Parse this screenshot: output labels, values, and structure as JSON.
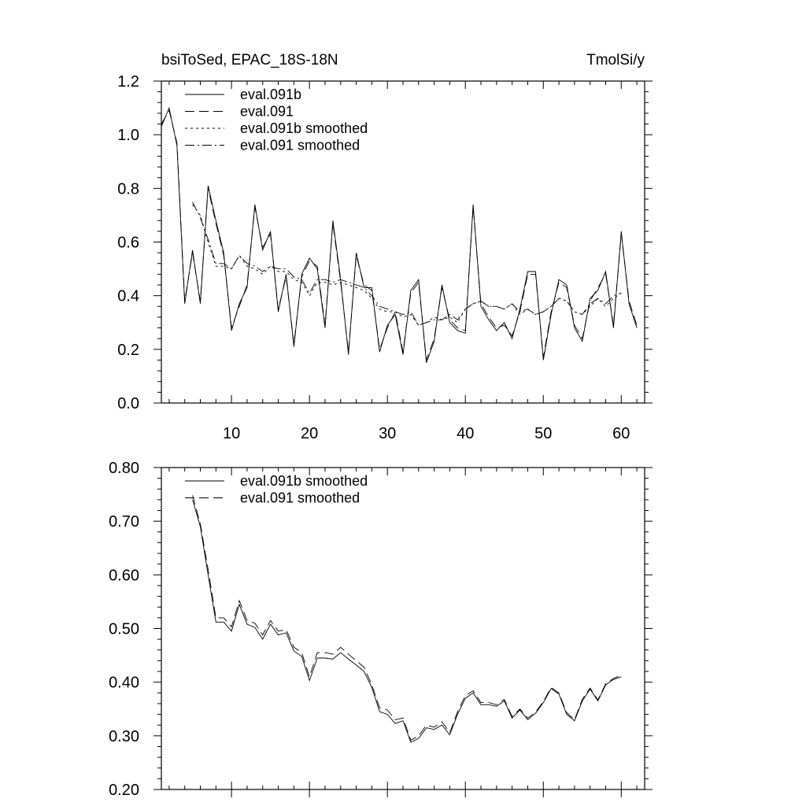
{
  "chart_data": [
    {
      "type": "line",
      "title_left": "bsiToSed, EPAC_18S-18N",
      "title_right": "TmolSi/y",
      "xlabel": "",
      "ylabel": "",
      "xlim": [
        1,
        63
      ],
      "ylim": [
        0.0,
        1.2
      ],
      "xticks": [
        10,
        20,
        30,
        40,
        50,
        60
      ],
      "yticks": [
        0.0,
        0.2,
        0.4,
        0.6,
        0.8,
        1.0,
        1.2
      ],
      "ytick_labels": [
        "0.0",
        "0.2",
        "0.4",
        "0.6",
        "0.8",
        "1.0",
        "1.2"
      ],
      "grid": false,
      "legend_position": "top-left",
      "series": [
        {
          "name": "eval.091b",
          "dash": "solid",
          "x": [
            1,
            2,
            3,
            4,
            5,
            6,
            7,
            8,
            9,
            10,
            11,
            12,
            13,
            14,
            15,
            16,
            17,
            18,
            19,
            20,
            21,
            22,
            23,
            24,
            25,
            26,
            27,
            28,
            29,
            30,
            31,
            32,
            33,
            34,
            35,
            36,
            37,
            38,
            39,
            40,
            41,
            42,
            43,
            44,
            45,
            46,
            47,
            48,
            49,
            50,
            51,
            52,
            53,
            54,
            55,
            56,
            57,
            58,
            59,
            60,
            61,
            62
          ],
          "values": [
            1.03,
            1.1,
            0.96,
            0.37,
            0.57,
            0.37,
            0.81,
            0.68,
            0.56,
            0.27,
            0.37,
            0.43,
            0.74,
            0.57,
            0.64,
            0.34,
            0.48,
            0.21,
            0.48,
            0.54,
            0.5,
            0.28,
            0.68,
            0.46,
            0.18,
            0.56,
            0.43,
            0.43,
            0.19,
            0.29,
            0.33,
            0.18,
            0.42,
            0.46,
            0.15,
            0.23,
            0.44,
            0.3,
            0.27,
            0.26,
            0.74,
            0.36,
            0.31,
            0.27,
            0.3,
            0.24,
            0.35,
            0.49,
            0.49,
            0.16,
            0.33,
            0.46,
            0.44,
            0.28,
            0.23,
            0.39,
            0.42,
            0.49,
            0.28,
            0.64,
            0.37,
            0.28
          ]
        },
        {
          "name": "eval.091",
          "dash": "long-dash",
          "x": [
            1,
            2,
            3,
            4,
            5,
            6,
            7,
            8,
            9,
            10,
            11,
            12,
            13,
            14,
            15,
            16,
            17,
            18,
            19,
            20,
            21,
            22,
            23,
            24,
            25,
            26,
            27,
            28,
            29,
            30,
            31,
            32,
            33,
            34,
            35,
            36,
            37,
            38,
            39,
            40,
            41,
            42,
            43,
            44,
            45,
            46,
            47,
            48,
            49,
            50,
            51,
            52,
            53,
            54,
            55,
            56,
            57,
            58,
            59,
            60,
            61,
            62
          ],
          "values": [
            1.04,
            1.09,
            0.97,
            0.38,
            0.56,
            0.38,
            0.8,
            0.67,
            0.55,
            0.28,
            0.36,
            0.44,
            0.73,
            0.58,
            0.63,
            0.35,
            0.47,
            0.22,
            0.47,
            0.53,
            0.51,
            0.29,
            0.67,
            0.45,
            0.19,
            0.55,
            0.44,
            0.42,
            0.2,
            0.28,
            0.34,
            0.19,
            0.41,
            0.45,
            0.16,
            0.24,
            0.43,
            0.31,
            0.28,
            0.27,
            0.73,
            0.37,
            0.32,
            0.28,
            0.29,
            0.25,
            0.34,
            0.48,
            0.48,
            0.17,
            0.34,
            0.45,
            0.43,
            0.29,
            0.24,
            0.38,
            0.43,
            0.48,
            0.29,
            0.63,
            0.38,
            0.29
          ]
        },
        {
          "name": "eval.091b smoothed",
          "dash": "short-dash",
          "x": [
            5,
            6,
            7,
            8,
            9,
            10,
            11,
            12,
            13,
            14,
            15,
            16,
            17,
            18,
            19,
            20,
            21,
            22,
            23,
            24,
            25,
            26,
            27,
            28,
            29,
            30,
            31,
            32,
            33,
            34,
            35,
            36,
            37,
            38,
            39,
            40,
            41,
            42,
            43,
            44,
            45,
            46,
            47,
            48,
            49,
            50,
            51,
            52,
            53,
            54,
            55,
            56,
            57,
            58,
            59,
            60
          ],
          "values": [
            0.74,
            0.7,
            0.6,
            0.51,
            0.51,
            0.5,
            0.55,
            0.51,
            0.5,
            0.48,
            0.51,
            0.49,
            0.49,
            0.46,
            0.45,
            0.4,
            0.45,
            0.45,
            0.44,
            0.45,
            0.44,
            0.43,
            0.42,
            0.39,
            0.35,
            0.34,
            0.34,
            0.32,
            0.33,
            0.29,
            0.3,
            0.32,
            0.31,
            0.32,
            0.3,
            0.35,
            0.37,
            0.38,
            0.36,
            0.36,
            0.35,
            0.37,
            0.33,
            0.35,
            0.33,
            0.34,
            0.36,
            0.39,
            0.38,
            0.34,
            0.33,
            0.36,
            0.39,
            0.36,
            0.39,
            0.41
          ]
        },
        {
          "name": "eval.091 smoothed",
          "dash": "dash-dot",
          "x": [
            5,
            6,
            7,
            8,
            9,
            10,
            11,
            12,
            13,
            14,
            15,
            16,
            17,
            18,
            19,
            20,
            21,
            22,
            23,
            24,
            25,
            26,
            27,
            28,
            29,
            30,
            31,
            32,
            33,
            34,
            35,
            36,
            37,
            38,
            39,
            40,
            41,
            42,
            43,
            44,
            45,
            46,
            47,
            48,
            49,
            50,
            51,
            52,
            53,
            54,
            55,
            56,
            57,
            58,
            59,
            60
          ],
          "values": [
            0.75,
            0.69,
            0.61,
            0.52,
            0.52,
            0.5,
            0.55,
            0.52,
            0.51,
            0.49,
            0.51,
            0.5,
            0.5,
            0.47,
            0.46,
            0.41,
            0.46,
            0.46,
            0.45,
            0.46,
            0.45,
            0.44,
            0.43,
            0.4,
            0.36,
            0.35,
            0.34,
            0.33,
            0.34,
            0.29,
            0.3,
            0.31,
            0.31,
            0.33,
            0.31,
            0.35,
            0.37,
            0.38,
            0.36,
            0.36,
            0.35,
            0.37,
            0.34,
            0.35,
            0.33,
            0.34,
            0.36,
            0.39,
            0.38,
            0.34,
            0.33,
            0.37,
            0.39,
            0.37,
            0.4,
            0.41
          ]
        }
      ]
    },
    {
      "type": "line",
      "xlabel": "",
      "ylabel": "",
      "xlim": [
        1,
        63
      ],
      "ylim": [
        0.2,
        0.8
      ],
      "xticks": [
        10,
        20,
        30,
        40,
        50,
        60
      ],
      "yticks": [
        0.2,
        0.3,
        0.4,
        0.5,
        0.6,
        0.7,
        0.8
      ],
      "ytick_labels": [
        "0.20",
        "0.30",
        "0.40",
        "0.50",
        "0.60",
        "0.70",
        "0.80"
      ],
      "grid": false,
      "legend_position": "top-left",
      "series": [
        {
          "name": "eval.091b smoothed",
          "dash": "solid",
          "x": [
            5,
            6,
            7,
            8,
            9,
            10,
            11,
            12,
            13,
            14,
            15,
            16,
            17,
            18,
            19,
            20,
            21,
            22,
            23,
            24,
            25,
            26,
            27,
            28,
            29,
            30,
            31,
            32,
            33,
            34,
            35,
            36,
            37,
            38,
            39,
            40,
            41,
            42,
            43,
            44,
            45,
            46,
            47,
            48,
            49,
            50,
            51,
            52,
            53,
            54,
            55,
            56,
            57,
            58,
            59,
            60
          ],
          "values": [
            0.74,
            0.69,
            0.6,
            0.512,
            0.512,
            0.495,
            0.545,
            0.508,
            0.502,
            0.48,
            0.508,
            0.488,
            0.492,
            0.458,
            0.448,
            0.403,
            0.445,
            0.445,
            0.443,
            0.455,
            0.443,
            0.432,
            0.42,
            0.39,
            0.345,
            0.34,
            0.323,
            0.328,
            0.288,
            0.295,
            0.315,
            0.312,
            0.32,
            0.302,
            0.34,
            0.37,
            0.38,
            0.358,
            0.358,
            0.355,
            0.365,
            0.333,
            0.348,
            0.33,
            0.342,
            0.362,
            0.388,
            0.378,
            0.34,
            0.328,
            0.365,
            0.387,
            0.365,
            0.395,
            0.405,
            0.41
          ]
        },
        {
          "name": "eval.091 smoothed",
          "dash": "long-dash",
          "x": [
            5,
            6,
            7,
            8,
            9,
            10,
            11,
            12,
            13,
            14,
            15,
            16,
            17,
            18,
            19,
            20,
            21,
            22,
            23,
            24,
            25,
            26,
            27,
            28,
            29,
            30,
            31,
            32,
            33,
            34,
            35,
            36,
            37,
            38,
            39,
            40,
            41,
            42,
            43,
            44,
            45,
            46,
            47,
            48,
            49,
            50,
            51,
            52,
            53,
            54,
            55,
            56,
            57,
            58,
            59,
            60
          ],
          "values": [
            0.748,
            0.695,
            0.61,
            0.52,
            0.52,
            0.503,
            0.552,
            0.515,
            0.51,
            0.488,
            0.515,
            0.495,
            0.498,
            0.465,
            0.455,
            0.41,
            0.455,
            0.455,
            0.452,
            0.465,
            0.452,
            0.44,
            0.428,
            0.395,
            0.352,
            0.348,
            0.33,
            0.333,
            0.292,
            0.3,
            0.32,
            0.316,
            0.326,
            0.306,
            0.345,
            0.375,
            0.384,
            0.362,
            0.362,
            0.358,
            0.368,
            0.336,
            0.35,
            0.333,
            0.344,
            0.364,
            0.39,
            0.38,
            0.343,
            0.33,
            0.368,
            0.389,
            0.367,
            0.397,
            0.407,
            0.413
          ]
        }
      ]
    }
  ]
}
